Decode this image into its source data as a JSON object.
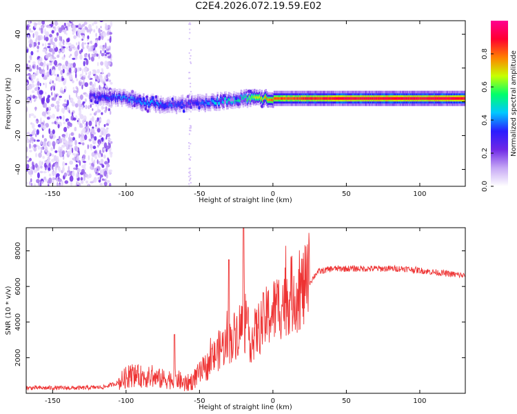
{
  "title": "C2E4.2026.072.19.59.E02",
  "chart_data": [
    {
      "type": "heatmap",
      "title": "C2E4.2026.072.19.59.E02",
      "xlabel": "Height of straight line (km)",
      "ylabel": "Frequency (Hz)",
      "xlim": [
        -168,
        131
      ],
      "ylim": [
        -50,
        48
      ],
      "xticks": [
        -150,
        -100,
        -50,
        0,
        50,
        100
      ],
      "yticks": [
        -40,
        -20,
        0,
        20,
        40
      ],
      "colorbar": {
        "label": "Normalized spectral amplitude",
        "range": [
          0,
          1
        ],
        "ticks": [
          0.0,
          0.2,
          0.4,
          0.6,
          0.8
        ],
        "colors": [
          "#ffffff",
          "#c6a8f5",
          "#6f28e6",
          "#2a1cff",
          "#00c8ff",
          "#00ff6a",
          "#c8ff00",
          "#ff8000",
          "#ff0030",
          "#ff0090"
        ]
      },
      "ridge": {
        "description_values": "frequency center (Hz) vs height (km)",
        "x": [
          -125,
          -110,
          -100,
          -90,
          -80,
          -70,
          -60,
          -55,
          -50,
          -40,
          -30,
          -20,
          -10,
          0,
          20,
          50,
          80,
          100,
          131
        ],
        "center": [
          3,
          2.5,
          2,
          0,
          -1,
          -2,
          -1,
          0,
          -1,
          0,
          1,
          2,
          2,
          2,
          2,
          2,
          2,
          2,
          2
        ],
        "amplitude": [
          0.3,
          0.35,
          0.4,
          0.4,
          0.4,
          0.35,
          0.35,
          0.3,
          0.35,
          0.45,
          0.5,
          0.55,
          0.7,
          0.8,
          0.85,
          0.9,
          0.9,
          0.9,
          0.9
        ]
      },
      "noise_region_x": [
        -168,
        -110
      ]
    },
    {
      "type": "line",
      "xlabel": "Height of straight line (km)",
      "ylabel": "SNR (10 * v/v)",
      "xlim": [
        -168,
        131
      ],
      "ylim": [
        0,
        9300
      ],
      "xticks": [
        -150,
        -100,
        -50,
        0,
        50,
        100
      ],
      "yticks": [
        2000,
        4000,
        6000,
        8000
      ],
      "series": [
        {
          "name": "SNR",
          "color": "#ee3333",
          "x": [
            -168,
            -150,
            -130,
            -115,
            -105,
            -100,
            -95,
            -85,
            -75,
            -65,
            -60,
            -55,
            -45,
            -35,
            -30,
            -25,
            -20,
            -15,
            -10,
            -5,
            0,
            5,
            10,
            20,
            25,
            30,
            40,
            50,
            70,
            90,
            110,
            131
          ],
          "values": [
            300,
            300,
            300,
            350,
            600,
            900,
            1000,
            900,
            800,
            800,
            500,
            700,
            1500,
            2600,
            2800,
            3400,
            4000,
            3000,
            3600,
            4200,
            4600,
            5000,
            5400,
            5800,
            6200,
            6800,
            7000,
            7000,
            7000,
            7000,
            6800,
            6600
          ]
        }
      ],
      "peaks": [
        {
          "x": -30,
          "value": 7500
        },
        {
          "x": -20,
          "value": 9300
        },
        {
          "x": -67,
          "value": 3300
        }
      ]
    }
  ]
}
